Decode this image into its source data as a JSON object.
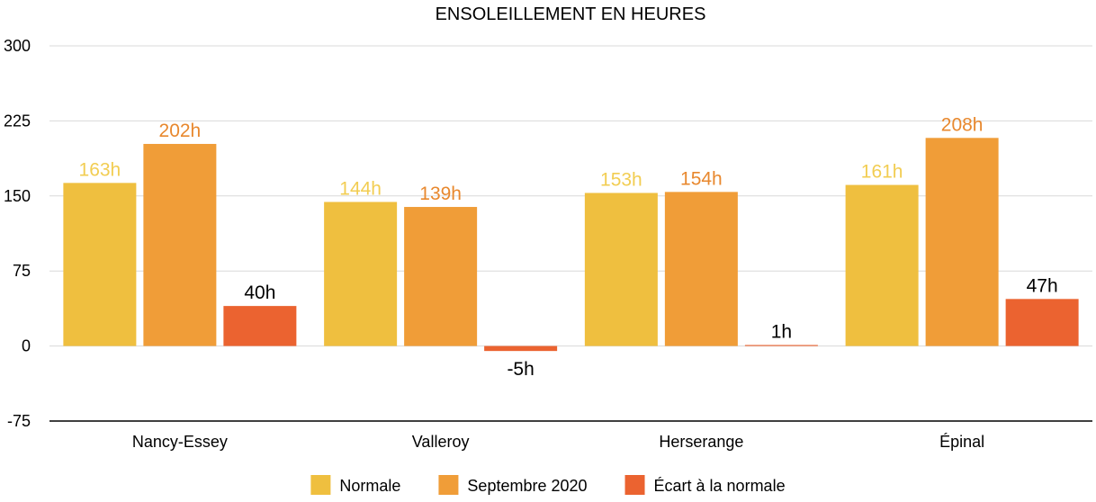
{
  "chart_data": {
    "type": "bar",
    "title": "ENSOLEILLEMENT EN HEURES",
    "xlabel": "",
    "ylabel": "",
    "ylim": [
      -75,
      300
    ],
    "yticks": [
      -75,
      0,
      75,
      150,
      225,
      300
    ],
    "grid": true,
    "legend_position": "bottom",
    "categories": [
      "Nancy-Essey",
      "Valleroy",
      "Herserange",
      "Épinal"
    ],
    "series": [
      {
        "name": "Normale",
        "color": "#efbf3f",
        "label_color": "#f2cd52",
        "values": [
          163,
          144,
          153,
          161
        ],
        "labels": [
          "163h",
          "144h",
          "153h",
          "161h"
        ]
      },
      {
        "name": "Septembre 2020",
        "color": "#f09d38",
        "label_color": "#e8882e",
        "values": [
          202,
          139,
          154,
          208
        ],
        "labels": [
          "202h",
          "139h",
          "154h",
          "208h"
        ]
      },
      {
        "name": "Écart à la normale",
        "color": "#eb6330",
        "label_color": "#000000",
        "values": [
          40,
          -5,
          1,
          47
        ],
        "labels": [
          "40h",
          "-5h",
          "1h",
          "47h"
        ]
      }
    ]
  }
}
